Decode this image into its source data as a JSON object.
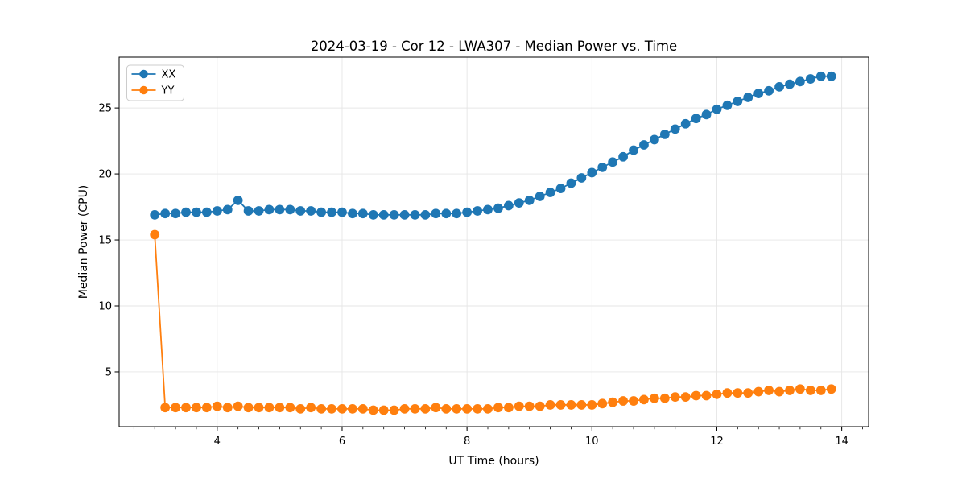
{
  "figure": {
    "background": "#ffffff"
  },
  "chart_data": {
    "type": "line",
    "title": "2024-03-19 - Cor 12 - LWA307 - Median Power vs. Time",
    "xlabel": "UT Time (hours)",
    "ylabel": "Median Power (CPU)",
    "xlim": [
      2.43,
      14.43
    ],
    "ylim": [
      0.85,
      28.85
    ],
    "x_major_ticks": [
      4,
      6,
      8,
      10,
      12,
      14
    ],
    "x_minor_tick_interval": 0.33333,
    "y_major_ticks": [
      5,
      10,
      15,
      20,
      25
    ],
    "grid": true,
    "grid_color": "#e6e6e6",
    "spine_color": "#000000",
    "legend_position": "upper-left",
    "x": [
      3.0,
      3.167,
      3.333,
      3.5,
      3.667,
      3.833,
      4.0,
      4.167,
      4.333,
      4.5,
      4.667,
      4.833,
      5.0,
      5.167,
      5.333,
      5.5,
      5.667,
      5.833,
      6.0,
      6.167,
      6.333,
      6.5,
      6.667,
      6.833,
      7.0,
      7.167,
      7.333,
      7.5,
      7.667,
      7.833,
      8.0,
      8.167,
      8.333,
      8.5,
      8.667,
      8.833,
      9.0,
      9.167,
      9.333,
      9.5,
      9.667,
      9.833,
      10.0,
      10.167,
      10.333,
      10.5,
      10.667,
      10.833,
      11.0,
      11.167,
      11.333,
      11.5,
      11.667,
      11.833,
      12.0,
      12.167,
      12.333,
      12.5,
      12.667,
      12.833,
      13.0,
      13.167,
      13.333,
      13.5,
      13.667,
      13.833
    ],
    "series": [
      {
        "name": "XX",
        "color": "#1f77b4",
        "values": [
          16.9,
          17.0,
          17.0,
          17.1,
          17.1,
          17.1,
          17.2,
          17.3,
          18.0,
          17.2,
          17.2,
          17.3,
          17.3,
          17.3,
          17.2,
          17.2,
          17.1,
          17.1,
          17.1,
          17.0,
          17.0,
          16.9,
          16.9,
          16.9,
          16.9,
          16.9,
          16.9,
          17.0,
          17.0,
          17.0,
          17.1,
          17.2,
          17.3,
          17.4,
          17.6,
          17.8,
          18.0,
          18.3,
          18.6,
          18.9,
          19.3,
          19.7,
          20.1,
          20.5,
          20.9,
          21.3,
          21.8,
          22.2,
          22.6,
          23.0,
          23.4,
          23.8,
          24.2,
          24.5,
          24.9,
          25.2,
          25.5,
          25.8,
          26.1,
          26.3,
          26.6,
          26.8,
          27.0,
          27.2,
          27.4,
          27.4
        ]
      },
      {
        "name": "YY",
        "color": "#ff7f0e",
        "values": [
          15.4,
          2.3,
          2.3,
          2.3,
          2.3,
          2.3,
          2.4,
          2.3,
          2.4,
          2.3,
          2.3,
          2.3,
          2.3,
          2.3,
          2.2,
          2.3,
          2.2,
          2.2,
          2.2,
          2.2,
          2.2,
          2.1,
          2.1,
          2.1,
          2.2,
          2.2,
          2.2,
          2.3,
          2.2,
          2.2,
          2.2,
          2.2,
          2.2,
          2.3,
          2.3,
          2.4,
          2.4,
          2.4,
          2.5,
          2.5,
          2.5,
          2.5,
          2.5,
          2.6,
          2.7,
          2.8,
          2.8,
          2.9,
          3.0,
          3.0,
          3.1,
          3.1,
          3.2,
          3.2,
          3.3,
          3.4,
          3.4,
          3.4,
          3.5,
          3.6,
          3.5,
          3.6,
          3.7,
          3.6,
          3.6,
          3.7
        ]
      }
    ]
  }
}
